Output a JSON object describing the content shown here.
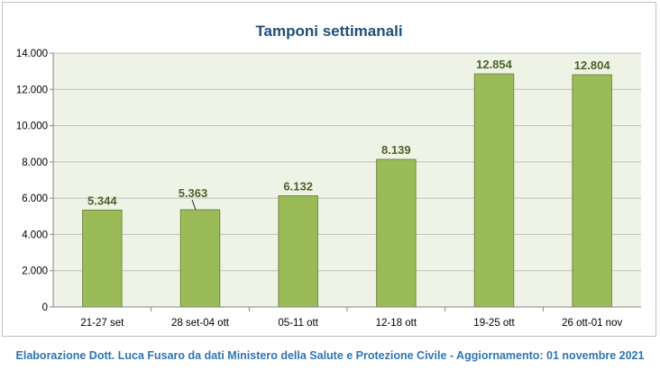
{
  "footer": {
    "credit": "Elaborazione Dott. Luca Fusaro da dati Ministero della Salute e Protezione Civile - Aggiornamento: 01 novembre 2021"
  },
  "colors": {
    "bar_fill": "#9bbb59",
    "bar_stroke": "#71893f",
    "plot_background": "#eef3e6",
    "gridline": "#bfbfbf",
    "title": "#1f4e79",
    "data_label": "#4f6228",
    "footer_text": "#2e75b6"
  },
  "chart_data": {
    "type": "bar",
    "title": "Tamponi settimanali",
    "xlabel": "",
    "ylabel": "",
    "categories": [
      "21-27 set",
      "28 set-04 ott",
      "05-11 ott",
      "12-18 ott",
      "19-25 ott",
      "26 ott-01 nov"
    ],
    "values": [
      5344,
      5363,
      6132,
      8139,
      12854,
      12804
    ],
    "value_labels": [
      "5.344",
      "5.363",
      "6.132",
      "8.139",
      "12.854",
      "12.804"
    ],
    "ylim": [
      0,
      14000
    ],
    "yticks": [
      0,
      2000,
      4000,
      6000,
      8000,
      10000,
      12000,
      14000
    ],
    "ytick_labels": [
      "0",
      "2.000",
      "4.000",
      "6.000",
      "8.000",
      "10.000",
      "12.000",
      "14.000"
    ],
    "grid": true,
    "legend": "none"
  }
}
